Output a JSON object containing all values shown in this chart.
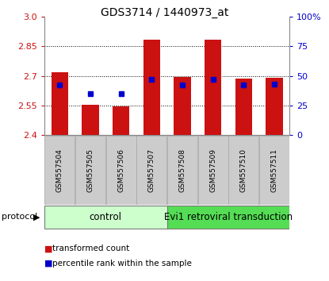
{
  "title": "GDS3714 / 1440973_at",
  "samples": [
    "GSM557504",
    "GSM557505",
    "GSM557506",
    "GSM557507",
    "GSM557508",
    "GSM557509",
    "GSM557510",
    "GSM557511"
  ],
  "transformed_counts": [
    2.72,
    2.555,
    2.545,
    2.885,
    2.695,
    2.885,
    2.685,
    2.69
  ],
  "percentile_ranks": [
    42,
    35,
    35,
    47,
    42,
    47,
    42,
    43
  ],
  "bar_bottom": 2.4,
  "ylim_left": [
    2.4,
    3.0
  ],
  "ylim_right": [
    0,
    100
  ],
  "yticks_left": [
    2.4,
    2.55,
    2.7,
    2.85,
    3.0
  ],
  "yticks_right": [
    0,
    25,
    50,
    75,
    100
  ],
  "ytick_labels_right": [
    "0",
    "25",
    "50",
    "75",
    "100%"
  ],
  "bar_color": "#cc1111",
  "marker_color": "#0000cc",
  "grid_color": "#000000",
  "n_control": 4,
  "n_evi1": 4,
  "control_label": "control",
  "evi1_label": "Evi1 retroviral transduction",
  "protocol_label": "protocol",
  "legend_bar": "transformed count",
  "legend_marker": "percentile rank within the sample",
  "control_bg": "#ccffcc",
  "evi1_bg": "#55dd55",
  "xticklabel_bg": "#cccccc",
  "bar_width": 0.55
}
